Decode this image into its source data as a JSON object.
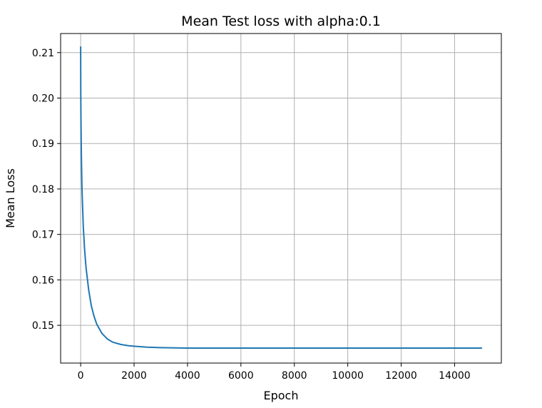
{
  "chart_data": {
    "type": "line",
    "title": "Mean Test loss with alpha:0.1",
    "xlabel": "Epoch",
    "ylabel": "Mean Loss",
    "xlim": [
      -750,
      15750
    ],
    "ylim": [
      0.1417,
      0.2142
    ],
    "xticks": [
      0,
      2000,
      4000,
      6000,
      8000,
      10000,
      12000,
      14000
    ],
    "xtick_labels": [
      "0",
      "2000",
      "4000",
      "6000",
      "8000",
      "10000",
      "12000",
      "14000"
    ],
    "yticks": [
      0.15,
      0.16,
      0.17,
      0.18,
      0.19,
      0.2,
      0.21
    ],
    "ytick_labels": [
      "0.15",
      "0.16",
      "0.17",
      "0.18",
      "0.19",
      "0.20",
      "0.21"
    ],
    "grid": true,
    "line_color": "#1f77b4",
    "series": [
      {
        "x": [
          0,
          5,
          10,
          25,
          50,
          100,
          150,
          200,
          300,
          400,
          500,
          600,
          800,
          1000,
          1200,
          1500,
          1800,
          2000,
          2500,
          3000,
          4000,
          5000,
          6000,
          8000,
          10000,
          12000,
          14000,
          15000
        ],
        "y": [
          0.2112,
          0.2005,
          0.196,
          0.188,
          0.18,
          0.1715,
          0.1665,
          0.1628,
          0.1578,
          0.1543,
          0.152,
          0.1503,
          0.1482,
          0.147,
          0.1463,
          0.1458,
          0.1455,
          0.1454,
          0.1452,
          0.1451,
          0.145,
          0.145,
          0.145,
          0.145,
          0.145,
          0.145,
          0.145,
          0.145
        ]
      }
    ]
  }
}
